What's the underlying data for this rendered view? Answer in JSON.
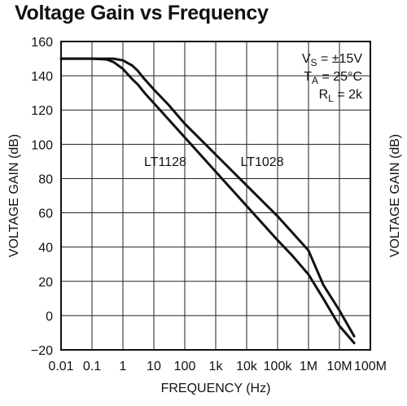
{
  "chart_data": {
    "type": "line",
    "title": "Voltage Gain vs Frequency",
    "xlabel": "FREQUENCY (Hz)",
    "ylabel": "VOLTAGE GAIN (dB)",
    "ylabel_right": "VOLTAGE GAIN (dB)",
    "x_scale": "log",
    "xlim": [
      0.01,
      100000000
    ],
    "ylim": [
      -20,
      160
    ],
    "grid": true,
    "x_ticks": [
      0.01,
      0.1,
      1,
      10,
      100,
      1000,
      10000,
      100000,
      1000000,
      10000000,
      100000000
    ],
    "x_tick_labels": [
      "0.01",
      "0.1",
      "1",
      "10",
      "100",
      "1k",
      "10k",
      "100k",
      "1M",
      "10M",
      "100M"
    ],
    "y_ticks": [
      -20,
      0,
      20,
      40,
      60,
      80,
      100,
      120,
      140,
      160
    ],
    "y_tick_labels": [
      "−20",
      "0",
      "20",
      "40",
      "60",
      "80",
      "100",
      "120",
      "140",
      "160"
    ],
    "conditions": [
      {
        "sym": "V",
        "sub": "S",
        "rest": " = ±15V"
      },
      {
        "sym": "T",
        "sub": "A",
        "rest": " = 25°C"
      },
      {
        "sym": "R",
        "sub": "L",
        "rest": " = 2k"
      }
    ],
    "series": [
      {
        "name": "LT1128",
        "x": [
          0.01,
          0.1,
          0.3,
          0.5,
          1,
          2,
          3,
          5,
          10,
          100,
          1000,
          10000,
          100000,
          300000,
          1000000,
          3000000,
          10000000,
          30000000
        ],
        "y": [
          150,
          150,
          149.5,
          148,
          144,
          138,
          135,
          130,
          124,
          104,
          84,
          64,
          44,
          35,
          24,
          10,
          -6,
          -16
        ]
      },
      {
        "name": "LT1028",
        "x": [
          0.01,
          0.1,
          0.5,
          1,
          2,
          3,
          5,
          10,
          30,
          100,
          1000,
          10000,
          100000,
          1000000,
          3000000,
          10000000,
          30000000
        ],
        "y": [
          150,
          150,
          150,
          149,
          146,
          143,
          138,
          132,
          123,
          112,
          94,
          76,
          58,
          38,
          18,
          3,
          -12
        ]
      }
    ]
  }
}
